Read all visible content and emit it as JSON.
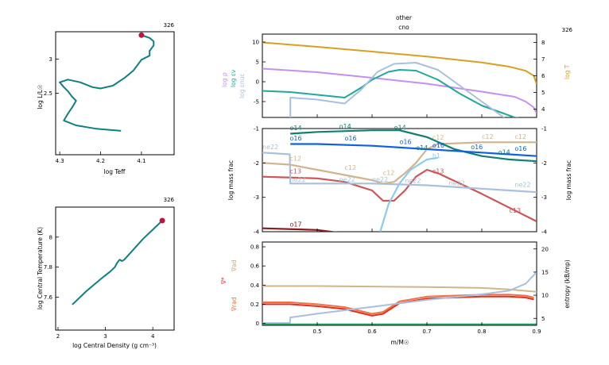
{
  "chart_data": [
    {
      "id": "hr",
      "type": "line",
      "model_number": "326",
      "xlabel": "log Teff",
      "ylabel": "log L/L☉",
      "xlim": [
        4.31,
        4.02
      ],
      "ylim": [
        1.6,
        3.4
      ],
      "xticks": [
        "4.3",
        "4.2",
        "4.1"
      ],
      "xtick_values": [
        4.3,
        4.2,
        4.1
      ],
      "yticks": [
        "3",
        "2.5"
      ],
      "ytick_values": [
        3.0,
        2.5
      ],
      "series": [
        {
          "color": "#0f8080",
          "x": [
            4.15,
            4.21,
            4.26,
            4.29,
            4.28,
            4.27,
            4.26,
            4.27,
            4.28,
            4.29,
            4.3,
            4.28,
            4.25,
            4.22,
            4.2,
            4.17,
            4.14,
            4.12,
            4.11,
            4.1,
            4.08,
            4.08,
            4.07,
            4.07,
            4.08,
            4.09,
            4.1
          ],
          "y": [
            1.95,
            1.98,
            2.03,
            2.1,
            2.2,
            2.29,
            2.39,
            2.45,
            2.53,
            2.59,
            2.66,
            2.7,
            2.66,
            2.59,
            2.57,
            2.61,
            2.73,
            2.83,
            2.91,
            2.99,
            3.05,
            3.12,
            3.2,
            3.26,
            3.31,
            3.33,
            3.35
          ]
        }
      ],
      "marker": {
        "x": 4.1,
        "y": 3.35,
        "color": "#c0143c"
      }
    },
    {
      "id": "central",
      "type": "line",
      "model_number": "326",
      "xlabel": "log Central Density (g cm⁻³)",
      "ylabel": "log Central Temperature (K)",
      "xlim": [
        1.95,
        4.45
      ],
      "ylim": [
        7.38,
        8.2
      ],
      "xticks": [
        "2",
        "3",
        "4"
      ],
      "xtick_values": [
        2,
        3,
        4
      ],
      "yticks": [
        "8",
        "7.8",
        "7.6"
      ],
      "ytick_values": [
        8.0,
        7.8,
        7.6
      ],
      "series": [
        {
          "color": "#0f8080",
          "x": [
            2.3,
            2.6,
            2.9,
            3.1,
            3.2,
            3.25,
            3.3,
            3.35,
            3.4,
            3.6,
            3.8,
            4.0,
            4.2
          ],
          "y": [
            7.55,
            7.64,
            7.72,
            7.77,
            7.8,
            7.83,
            7.85,
            7.84,
            7.85,
            7.92,
            7.99,
            8.05,
            8.11
          ]
        }
      ],
      "marker": {
        "x": 4.2,
        "y": 8.11,
        "color": "#c0143c"
      }
    },
    {
      "id": "profile_top",
      "type": "line",
      "title": "other",
      "subtitle": "cno",
      "model_number": "326",
      "xlim": [
        0.4,
        0.9
      ],
      "ylim": [
        -9,
        12
      ],
      "yticks": [
        "10",
        "5",
        "0",
        "-5"
      ],
      "ytick_values": [
        10,
        5,
        0,
        -5
      ],
      "ylim_right": [
        3.5,
        8.5
      ],
      "yticks_right": [
        "8",
        "7",
        "6",
        "5",
        "4"
      ],
      "ytick_values_right": [
        8,
        7,
        6,
        5,
        4
      ],
      "ylabel_left": [
        "log ρ",
        "log εν",
        "log εnuc"
      ],
      "ylabel_left_colors": [
        "#c58ff0",
        "#20a898",
        "#a8c0dc"
      ],
      "ylabel_right": "log T",
      "ylabel_right_color": "#d8a020",
      "series": [
        {
          "axis": "right",
          "color": "#d8a020",
          "x": [
            0.4,
            0.5,
            0.6,
            0.7,
            0.8,
            0.85,
            0.88,
            0.895,
            0.9
          ],
          "y": [
            8.0,
            7.74,
            7.45,
            7.15,
            6.8,
            6.55,
            6.3,
            6.0,
            5.5
          ]
        },
        {
          "axis": "left",
          "color": "#c58ff0",
          "x": [
            0.4,
            0.5,
            0.6,
            0.7,
            0.8,
            0.86,
            0.88,
            0.895,
            0.9
          ],
          "y": [
            3.3,
            2.4,
            1.0,
            -0.5,
            -2.5,
            -3.8,
            -5,
            -6.5,
            -8
          ]
        },
        {
          "axis": "left",
          "color": "#20a898",
          "x": [
            0.4,
            0.45,
            0.55,
            0.58,
            0.6,
            0.63,
            0.65,
            0.68,
            0.72,
            0.76,
            0.8,
            0.82,
            0.84,
            0.86,
            0.88
          ],
          "y": [
            -2.3,
            -2.6,
            -4.0,
            -1.5,
            0.5,
            2.5,
            3.0,
            2.8,
            0.5,
            -3,
            -6,
            -7,
            -8,
            -9,
            -9.5
          ]
        },
        {
          "axis": "left",
          "color": "#a8c0dc",
          "x": [
            0.451,
            0.451,
            0.5,
            0.55,
            0.58,
            0.61,
            0.64,
            0.68,
            0.72,
            0.76,
            0.8,
            0.83,
            0.86
          ],
          "y": [
            -12,
            -4.0,
            -4.5,
            -5.5,
            -2,
            2.5,
            4.5,
            4.8,
            3.0,
            -1,
            -5,
            -8,
            -11
          ]
        }
      ]
    },
    {
      "id": "profile_mid",
      "type": "line",
      "xlim": [
        0.4,
        0.9
      ],
      "ylim": [
        -4,
        -1
      ],
      "yticks": [
        "-1",
        "-2",
        "-3",
        "-4"
      ],
      "ytick_values": [
        -1,
        -2,
        -3,
        -4
      ],
      "ylim_right": [
        -4,
        -1
      ],
      "yticks_right": [
        "-1",
        "-2",
        "-3",
        "-4"
      ],
      "ytick_values_right": [
        -1,
        -2,
        -3,
        -4
      ],
      "ylabel_left": "log mass frac",
      "ylabel_right": "log mass frac",
      "series": [
        {
          "name": "c12",
          "color": "#d2b48c",
          "x": [
            0.4,
            0.45,
            0.5,
            0.55,
            0.6,
            0.62,
            0.64,
            0.66,
            0.68,
            0.7,
            0.72,
            0.8,
            0.9
          ],
          "y": [
            -2.0,
            -2.05,
            -2.2,
            -2.35,
            -2.5,
            -2.6,
            -2.55,
            -2.3,
            -2.0,
            -1.6,
            -1.45,
            -1.4,
            -1.4
          ]
        },
        {
          "name": "c13",
          "color": "#cc5555",
          "x": [
            0.4,
            0.5,
            0.55,
            0.6,
            0.62,
            0.64,
            0.66,
            0.68,
            0.7,
            0.72,
            0.76,
            0.8,
            0.85,
            0.9
          ],
          "y": [
            -2.4,
            -2.45,
            -2.55,
            -2.8,
            -3.1,
            -3.1,
            -2.8,
            -2.4,
            -2.2,
            -2.3,
            -2.6,
            -2.9,
            -3.3,
            -3.7
          ]
        },
        {
          "name": "h1",
          "color": "#88ccee",
          "x": [
            0.615,
            0.63,
            0.65,
            0.67,
            0.69,
            0.7,
            0.72
          ],
          "y": [
            -4.0,
            -3.2,
            -2.6,
            -2.2,
            -2.0,
            -1.9,
            -1.85
          ]
        },
        {
          "name": "ne22",
          "color": "#a8c0dc",
          "x": [
            0.4,
            0.45,
            0.451,
            0.5,
            0.6,
            0.7,
            0.8,
            0.9
          ],
          "y": [
            -1.7,
            -1.75,
            -2.6,
            -2.6,
            -2.6,
            -2.65,
            -2.75,
            -2.85
          ]
        },
        {
          "name": "o14",
          "color": "#0f8070",
          "x": [
            0.451,
            0.5,
            0.6,
            0.65,
            0.7,
            0.75,
            0.8,
            0.85,
            0.9
          ],
          "y": [
            -1.15,
            -1.1,
            -1.05,
            -1.05,
            -1.25,
            -1.6,
            -1.8,
            -1.9,
            -1.95
          ]
        },
        {
          "name": "o16",
          "color": "#1060e0",
          "x": [
            0.451,
            0.5,
            0.6,
            0.7,
            0.8,
            0.9
          ],
          "y": [
            -1.45,
            -1.45,
            -1.5,
            -1.6,
            -1.7,
            -1.8
          ]
        },
        {
          "name": "o17",
          "color": "#8b1a1a",
          "x": [
            0.4,
            0.5,
            0.55
          ],
          "y": [
            -3.9,
            -3.95,
            -4.05
          ]
        }
      ],
      "labels": [
        {
          "text": "o14",
          "x": 0.45,
          "y": -1.05,
          "color": "#0f8070"
        },
        {
          "text": "o14",
          "x": 0.54,
          "y": -1.0,
          "color": "#0f8070"
        },
        {
          "text": "o14",
          "x": 0.64,
          "y": -1.03,
          "color": "#0f8070"
        },
        {
          "text": "o14",
          "x": 0.68,
          "y": -1.62,
          "color": "#0f8070"
        },
        {
          "text": "o14",
          "x": 0.83,
          "y": -1.75,
          "color": "#0f8070"
        },
        {
          "text": "o16",
          "x": 0.45,
          "y": -1.35,
          "color": "#1060e0"
        },
        {
          "text": "o16",
          "x": 0.55,
          "y": -1.35,
          "color": "#1060e0"
        },
        {
          "text": "o16",
          "x": 0.65,
          "y": -1.45,
          "color": "#1060e0"
        },
        {
          "text": "o16",
          "x": 0.71,
          "y": -1.55,
          "color": "#1060e0"
        },
        {
          "text": "o16",
          "x": 0.78,
          "y": -1.6,
          "color": "#1060e0"
        },
        {
          "text": "o16",
          "x": 0.86,
          "y": -1.65,
          "color": "#1060e0"
        },
        {
          "text": "c12",
          "x": 0.45,
          "y": -1.93,
          "color": "#d2b48c"
        },
        {
          "text": "c12",
          "x": 0.55,
          "y": -2.2,
          "color": "#d2b48c"
        },
        {
          "text": "c12",
          "x": 0.62,
          "y": -2.35,
          "color": "#d2b48c"
        },
        {
          "text": "c12",
          "x": 0.71,
          "y": -1.32,
          "color": "#d2b48c"
        },
        {
          "text": "c12",
          "x": 0.8,
          "y": -1.3,
          "color": "#d2b48c"
        },
        {
          "text": "c12",
          "x": 0.86,
          "y": -1.3,
          "color": "#d2b48c"
        },
        {
          "text": "c13",
          "x": 0.45,
          "y": -2.3,
          "color": "#cc5555"
        },
        {
          "text": "c13",
          "x": 0.71,
          "y": -2.3,
          "color": "#cc5555"
        },
        {
          "text": "c13",
          "x": 0.85,
          "y": -3.45,
          "color": "#cc5555"
        },
        {
          "text": "ne22",
          "x": 0.4,
          "y": -1.6,
          "color": "#a8c0dc"
        },
        {
          "text": "ne22",
          "x": 0.45,
          "y": -2.55,
          "color": "#a8c0dc"
        },
        {
          "text": "ne22",
          "x": 0.54,
          "y": -2.55,
          "color": "#a8c0dc"
        },
        {
          "text": "ne22",
          "x": 0.6,
          "y": -2.55,
          "color": "#a8c0dc"
        },
        {
          "text": "ne22",
          "x": 0.66,
          "y": -2.58,
          "color": "#a8c0dc"
        },
        {
          "text": "ne22",
          "x": 0.74,
          "y": -2.65,
          "color": "#a8c0dc"
        },
        {
          "text": "ne22",
          "x": 0.86,
          "y": -2.7,
          "color": "#a8c0dc"
        },
        {
          "text": "h1",
          "x": 0.71,
          "y": -1.85,
          "color": "#88ccee"
        },
        {
          "text": "o17",
          "x": 0.45,
          "y": -3.85,
          "color": "#8b1a1a"
        }
      ]
    },
    {
      "id": "profile_bot",
      "type": "line",
      "xlim": [
        0.4,
        0.9
      ],
      "xlabel": "m/M☉",
      "xticks": [
        "0.5",
        "0.6",
        "0.7",
        "0.8",
        "0.9"
      ],
      "xtick_values": [
        0.5,
        0.6,
        0.7,
        0.8,
        0.9
      ],
      "ylim": [
        -0.02,
        0.85
      ],
      "yticks": [
        "0.8",
        "0.6",
        "0.4",
        "0.2",
        "0"
      ],
      "ytick_values": [
        0.8,
        0.6,
        0.4,
        0.2,
        0.0
      ],
      "ylim_right": [
        3.5,
        21.5
      ],
      "yticks_right": [
        "20",
        "15",
        "10",
        "5"
      ],
      "ytick_values_right": [
        20,
        15,
        10,
        5
      ],
      "ylabel_left": [
        "∇ad",
        "∇*",
        "∇rad"
      ],
      "ylabel_left_colors": [
        "#d2a070",
        "#e03020",
        "#f07040"
      ],
      "ylabel_right": "entropy (kB/mp)",
      "series": [
        {
          "axis": "left",
          "color": "#d2b48c",
          "x": [
            0.4,
            0.5,
            0.6,
            0.7,
            0.8,
            0.85,
            0.9
          ],
          "y": [
            0.39,
            0.39,
            0.385,
            0.38,
            0.37,
            0.355,
            0.33
          ]
        },
        {
          "axis": "left",
          "color": "#f07040",
          "x": [
            0.4,
            0.45,
            0.5,
            0.55,
            0.6,
            0.62,
            0.65,
            0.7,
            0.8,
            0.85,
            0.88,
            0.895
          ],
          "y": [
            0.22,
            0.22,
            0.2,
            0.17,
            0.1,
            0.12,
            0.23,
            0.28,
            0.3,
            0.3,
            0.29,
            0.27
          ]
        },
        {
          "axis": "left",
          "color": "#e03020",
          "x": [
            0.4,
            0.45,
            0.5,
            0.55,
            0.6,
            0.62,
            0.65,
            0.7,
            0.8,
            0.85,
            0.88,
            0.895
          ],
          "y": [
            0.2,
            0.2,
            0.18,
            0.15,
            0.08,
            0.1,
            0.21,
            0.26,
            0.28,
            0.28,
            0.27,
            0.25
          ]
        },
        {
          "axis": "right",
          "color": "#a8c0dc",
          "x": [
            0.4,
            0.45,
            0.451,
            0.5,
            0.6,
            0.7,
            0.8,
            0.85,
            0.88,
            0.9
          ],
          "y": [
            4,
            4,
            5.2,
            6,
            7.5,
            9.0,
            10.2,
            11.0,
            12.5,
            15
          ]
        },
        {
          "axis": "left",
          "color": "#20a060",
          "x": [
            0.4,
            0.9
          ],
          "y": [
            -0.01,
            -0.01
          ]
        }
      ]
    }
  ]
}
